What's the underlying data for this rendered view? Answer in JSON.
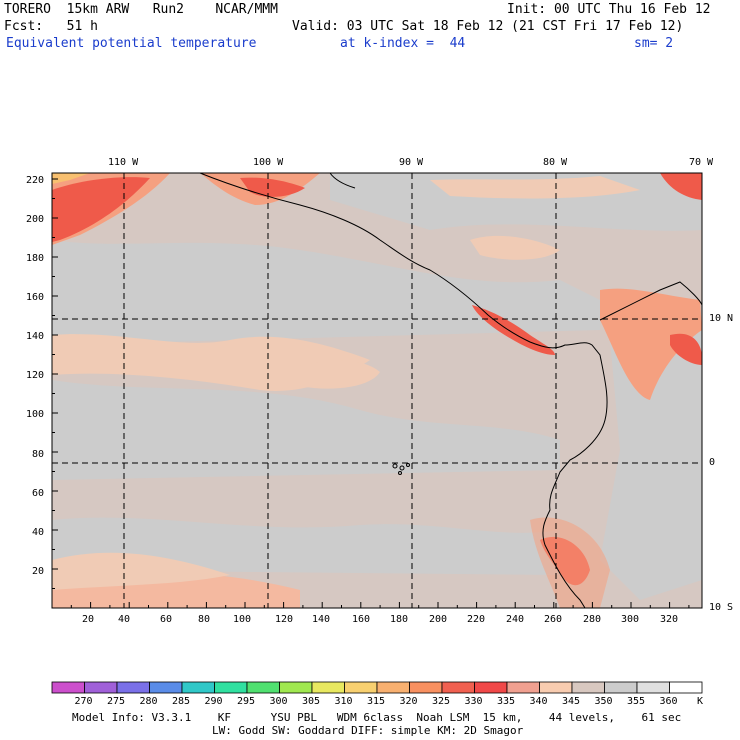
{
  "header": {
    "model": "TORERO  15km ARW   Run2    NCAR/MMM",
    "init": "Init: 00 UTC Thu 16 Feb 12",
    "fcst": "Fcst:   51 h",
    "valid": "Valid: 03 UTC Sat 18 Feb 12 (21 CST Fri 17 Feb 12)",
    "field": "Equivalent potential temperature",
    "level": "at k-index =  44",
    "smooth": "sm= 2"
  },
  "map": {
    "lon_labels": [
      "110 W",
      "100 W",
      "90 W",
      "80 W",
      "70 W"
    ],
    "lat_labels": [
      "10 N",
      "0",
      "10 S"
    ],
    "y_ticks": [
      "220",
      "200",
      "180",
      "160",
      "140",
      "120",
      "100",
      "80",
      "60",
      "40",
      "20"
    ],
    "x_ticks": [
      "20",
      "40",
      "60",
      "80",
      "100",
      "120",
      "140",
      "160",
      "180",
      "200",
      "220",
      "240",
      "260",
      "280",
      "300",
      "320"
    ]
  },
  "colorbar": {
    "labels": [
      "270",
      "275",
      "280",
      "285",
      "290",
      "295",
      "300",
      "305",
      "310",
      "315",
      "320",
      "325",
      "330",
      "335",
      "340",
      "345",
      "350",
      "355",
      "360"
    ],
    "unit": "K",
    "colors": [
      "#cc4fcc",
      "#a060d8",
      "#7a70e8",
      "#5a8ce8",
      "#30c8c8",
      "#30e0a0",
      "#50e070",
      "#a0e850",
      "#e8e860",
      "#f8d070",
      "#f8b070",
      "#f89060",
      "#f06050",
      "#f04848",
      "#f0a090",
      "#f8ccb0",
      "#d8c8c0",
      "#cccccc",
      "#e0e0e0",
      "#ffffff"
    ]
  },
  "footer": {
    "line1": "Model Info: V3.3.1    KF      YSU PBL   WDM 6class  Noah LSM  15 km,    44 levels,    61 sec",
    "line2": "LW: Godd SW: Goddard DIFF: simple KM: 2D Smagor"
  }
}
